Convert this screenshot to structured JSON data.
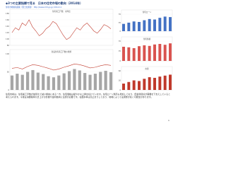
{
  "header": {
    "title": "◆3つの主要指標で見る　日本の住宅市場の動向（2014年）",
    "source": "住宅市場動向調査（国土交通省） http://www.mlit.go.jp/ 2014.11"
  },
  "charts": [
    {
      "type": "line",
      "title": "住宅着工戸数　前年比",
      "color": "#c0392b",
      "x": [
        1,
        2,
        3,
        4,
        5,
        6,
        7,
        8,
        9,
        10,
        11,
        12,
        13,
        14,
        15,
        16,
        17,
        18,
        19,
        20,
        21,
        22,
        23,
        24,
        25,
        26,
        27,
        28,
        29,
        30
      ],
      "values": [
        120,
        135,
        128,
        150,
        142,
        160,
        138,
        125,
        110,
        118,
        132,
        140,
        155,
        148,
        130,
        112,
        98,
        105,
        120,
        135,
        128,
        142,
        150,
        138,
        125,
        118,
        130,
        145,
        140,
        132
      ],
      "ylim": [
        80,
        180
      ],
      "yticks": [
        80,
        100,
        120,
        140,
        160,
        180
      ]
    },
    {
      "type": "combo",
      "title": "新設住宅着工戸数の推移",
      "x": [
        1,
        2,
        3,
        4,
        5,
        6,
        7,
        8,
        9,
        10,
        11,
        12,
        13,
        14,
        15,
        16,
        17,
        18,
        19,
        20
      ],
      "ylim": [
        0,
        100
      ],
      "yticks": [
        0,
        50,
        100
      ],
      "series": [
        {
          "type": "bar",
          "color": "#a6a6a6",
          "values": [
            40,
            45,
            42,
            50,
            55,
            48,
            44,
            38,
            35,
            40,
            46,
            52,
            58,
            54,
            47,
            42,
            45,
            50,
            53,
            49
          ]
        },
        {
          "type": "line",
          "color": "#c0392b",
          "values": [
            60,
            62,
            58,
            65,
            70,
            68,
            64,
            60,
            55,
            58,
            63,
            67,
            72,
            70,
            66,
            61,
            63,
            67,
            70,
            68
          ]
        }
      ]
    },
    {
      "type": "bar",
      "title": "住宅ローン",
      "color": "#4472c4",
      "x": [
        1,
        2,
        3,
        4,
        5,
        6,
        7,
        8,
        9,
        10
      ],
      "values": [
        30,
        35,
        40,
        38,
        45,
        50,
        48,
        55,
        60,
        58
      ],
      "ylim": [
        0,
        70
      ],
      "yticks": [
        0,
        35,
        70
      ]
    },
    {
      "type": "bar",
      "title": "住宅価格",
      "color": "#d9534f",
      "x": [
        1,
        2,
        3,
        4,
        5,
        6,
        7,
        8,
        9,
        10
      ],
      "values": [
        50,
        48,
        45,
        52,
        55,
        53,
        58,
        60,
        57,
        62
      ],
      "ylim": [
        0,
        70
      ],
      "yticks": [
        0,
        35,
        70
      ]
    },
    {
      "type": "bar",
      "title": "在庫",
      "color": "#c0392b",
      "x": [
        1,
        2,
        3,
        4,
        5,
        6,
        7,
        8,
        9,
        10
      ],
      "values": [
        20,
        25,
        30,
        28,
        35,
        40,
        38,
        42,
        45,
        48
      ],
      "ylim": [
        0,
        60
      ],
      "yticks": [
        0,
        30,
        60
      ]
    }
  ],
  "body": "住宅市場は、住宅着工戸数が前年比で減少傾向にある一方、住宅価格は緩やかな上昇を続けています。住宅ローン残高も増加しており、低金利環境が需要を下支えしていると考えられます。今後は消費税率引き上げの影響や金利動向に注意が必要です。在庫水準は高止まりしており、地域によっては調整が続く可能性があります。",
  "page": "1"
}
